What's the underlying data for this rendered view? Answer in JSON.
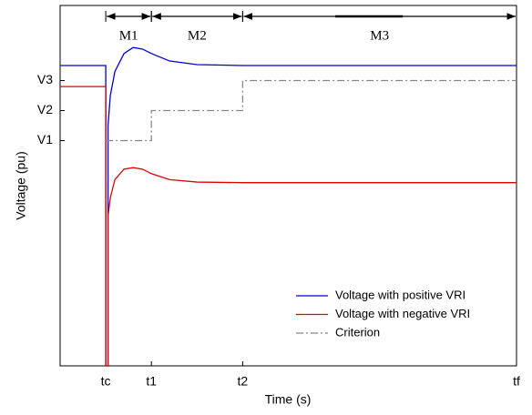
{
  "chart_data": {
    "type": "line",
    "xlabel": "Time (s)",
    "ylabel": "Voltage (pu)",
    "xlim": [
      0,
      10
    ],
    "ylim": [
      0,
      1.2
    ],
    "xticks": [
      {
        "value": 1.0,
        "label": "tc"
      },
      {
        "value": 2.0,
        "label": "t1"
      },
      {
        "value": 4.0,
        "label": "t2"
      },
      {
        "value": 10,
        "label": "tf"
      }
    ],
    "yticks": [
      {
        "value": 0.75,
        "label": "V1"
      },
      {
        "value": 0.85,
        "label": "V2"
      },
      {
        "value": 0.95,
        "label": "V3"
      }
    ],
    "legend": "lower right",
    "series": [
      {
        "name": "Voltage with positive VRI",
        "color": "#0000d0",
        "style": "solid",
        "x": [
          0,
          1.0,
          1.0,
          1.05,
          1.05,
          1.1,
          1.2,
          1.4,
          1.6,
          1.8,
          2.0,
          2.4,
          3.0,
          4,
          10
        ],
        "values": [
          1.0,
          1.0,
          0,
          0,
          0.8,
          0.9,
          0.98,
          1.04,
          1.06,
          1.055,
          1.04,
          1.015,
          1.003,
          1.0,
          1.0
        ]
      },
      {
        "name": "Voltage with negative VRI",
        "color": "#e00000",
        "style": "solid",
        "x": [
          0,
          1.0,
          1.0,
          1.05,
          1.05,
          1.1,
          1.2,
          1.4,
          1.6,
          1.8,
          2.0,
          2.4,
          3.0,
          4,
          10
        ],
        "values": [
          0.93,
          0.93,
          0,
          0,
          0.5,
          0.56,
          0.62,
          0.655,
          0.66,
          0.655,
          0.64,
          0.62,
          0.612,
          0.61,
          0.61
        ]
      },
      {
        "name": "Criterion",
        "color": "#888888",
        "style": "dashdot",
        "x": [
          1.0,
          2.0,
          2.0,
          4.0,
          4.0,
          10
        ],
        "values": [
          0.75,
          0.75,
          0.85,
          0.85,
          0.95,
          0.95
        ]
      }
    ],
    "annotations": [
      {
        "label": "M1",
        "start": 1.0,
        "end": 2.0
      },
      {
        "label": "M2",
        "start": 2.0,
        "end": 4.0
      },
      {
        "label": "M3",
        "start": 4.0,
        "end": 10
      }
    ]
  }
}
